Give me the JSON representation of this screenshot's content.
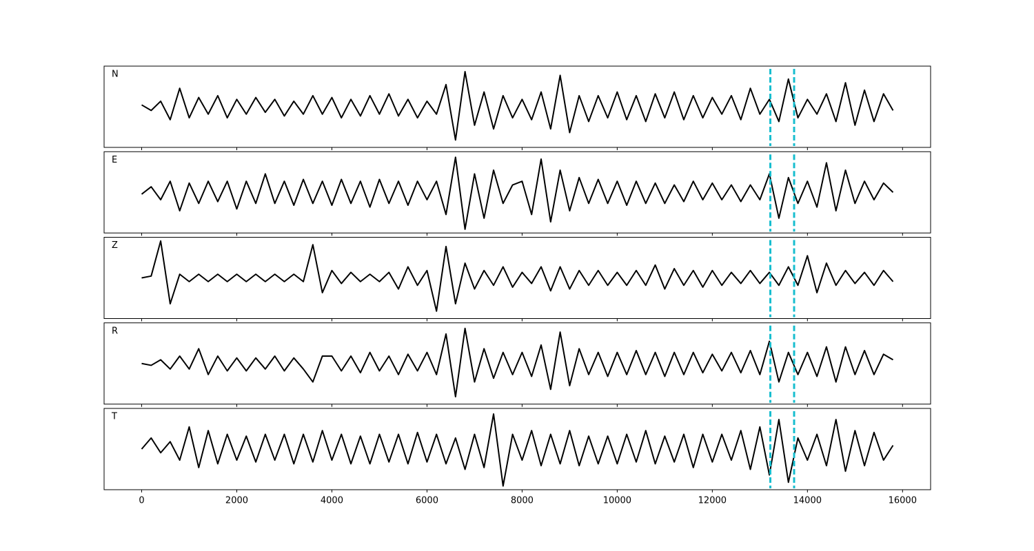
{
  "chart_data": {
    "type": "line",
    "x": [
      0,
      200,
      400,
      600,
      800,
      1000,
      1200,
      1400,
      1600,
      1800,
      2000,
      2200,
      2400,
      2600,
      2800,
      3000,
      3200,
      3400,
      3600,
      3800,
      4000,
      4200,
      4400,
      4600,
      4800,
      5000,
      5200,
      5400,
      5600,
      5800,
      6000,
      6200,
      6400,
      6600,
      6800,
      7000,
      7200,
      7400,
      7600,
      7800,
      8000,
      8200,
      8400,
      8600,
      8800,
      9000,
      9200,
      9400,
      9600,
      9800,
      10000,
      10200,
      10400,
      10600,
      10800,
      11000,
      11200,
      11400,
      11600,
      11800,
      12000,
      12200,
      12400,
      12600,
      12800,
      13000,
      13200,
      13400,
      13600,
      13800,
      14000,
      14200,
      14400,
      14600,
      14800,
      15000,
      15200,
      15400,
      15600,
      15800
    ],
    "series": [
      {
        "name": "N",
        "color": "#000000",
        "values": [
          0.05,
          -0.1,
          0.15,
          -0.35,
          0.5,
          -0.3,
          0.25,
          -0.2,
          0.3,
          -0.3,
          0.2,
          -0.2,
          0.25,
          -0.15,
          0.2,
          -0.25,
          0.15,
          -0.2,
          0.3,
          -0.2,
          0.25,
          -0.3,
          0.2,
          -0.25,
          0.3,
          -0.2,
          0.35,
          -0.25,
          0.2,
          -0.3,
          0.15,
          -0.2,
          0.6,
          -0.9,
          0.95,
          -0.5,
          0.4,
          -0.6,
          0.3,
          -0.3,
          0.2,
          -0.35,
          0.4,
          -0.6,
          0.85,
          -0.7,
          0.3,
          -0.4,
          0.3,
          -0.3,
          0.4,
          -0.35,
          0.3,
          -0.4,
          0.35,
          -0.3,
          0.4,
          -0.35,
          0.3,
          -0.3,
          0.25,
          -0.2,
          0.3,
          -0.35,
          0.5,
          -0.2,
          0.2,
          -0.4,
          0.75,
          -0.3,
          0.2,
          -0.2,
          0.35,
          -0.4,
          0.65,
          -0.5,
          0.45,
          -0.4,
          0.35,
          -0.1
        ]
      },
      {
        "name": "E",
        "color": "#000000",
        "values": [
          -0.05,
          0.15,
          -0.2,
          0.3,
          -0.5,
          0.25,
          -0.3,
          0.3,
          -0.25,
          0.3,
          -0.45,
          0.3,
          -0.3,
          0.5,
          -0.3,
          0.3,
          -0.35,
          0.35,
          -0.3,
          0.3,
          -0.35,
          0.35,
          -0.3,
          0.3,
          -0.4,
          0.35,
          -0.3,
          0.3,
          -0.35,
          0.3,
          -0.2,
          0.3,
          -0.6,
          0.95,
          -1.0,
          0.5,
          -0.7,
          0.6,
          -0.3,
          0.2,
          0.3,
          -0.6,
          0.9,
          -0.8,
          0.6,
          -0.5,
          0.4,
          -0.3,
          0.35,
          -0.3,
          0.3,
          -0.35,
          0.3,
          -0.3,
          0.25,
          -0.3,
          0.2,
          -0.25,
          0.3,
          -0.2,
          0.25,
          -0.2,
          0.2,
          -0.25,
          0.2,
          -0.2,
          0.5,
          -0.7,
          0.4,
          -0.3,
          0.3,
          -0.4,
          0.8,
          -0.5,
          0.6,
          -0.3,
          0.3,
          -0.2,
          0.25,
          0.0
        ]
      },
      {
        "name": "Z",
        "color": "#000000",
        "values": [
          0.0,
          0.05,
          1.0,
          -0.7,
          0.1,
          -0.1,
          0.1,
          -0.1,
          0.1,
          -0.1,
          0.1,
          -0.1,
          0.1,
          -0.1,
          0.1,
          -0.1,
          0.1,
          -0.1,
          0.9,
          -0.4,
          0.2,
          -0.15,
          0.15,
          -0.1,
          0.1,
          -0.1,
          0.15,
          -0.3,
          0.3,
          -0.2,
          0.2,
          -0.9,
          0.85,
          -0.7,
          0.4,
          -0.3,
          0.2,
          -0.2,
          0.3,
          -0.25,
          0.15,
          -0.15,
          0.3,
          -0.35,
          0.3,
          -0.3,
          0.2,
          -0.2,
          0.2,
          -0.2,
          0.15,
          -0.2,
          0.2,
          -0.2,
          0.35,
          -0.3,
          0.25,
          -0.2,
          0.2,
          -0.25,
          0.2,
          -0.2,
          0.15,
          -0.15,
          0.2,
          -0.15,
          0.15,
          -0.2,
          0.3,
          -0.2,
          0.6,
          -0.4,
          0.4,
          -0.2,
          0.2,
          -0.15,
          0.15,
          -0.2,
          0.2,
          -0.1
        ]
      },
      {
        "name": "R",
        "color": "#000000",
        "values": [
          0.0,
          -0.05,
          0.1,
          -0.15,
          0.2,
          -0.15,
          0.4,
          -0.3,
          0.2,
          -0.2,
          0.15,
          -0.2,
          0.15,
          -0.15,
          0.2,
          -0.2,
          0.15,
          -0.15,
          -0.5,
          0.2,
          0.2,
          -0.2,
          0.2,
          -0.25,
          0.3,
          -0.2,
          0.2,
          -0.3,
          0.25,
          -0.2,
          0.3,
          -0.3,
          0.8,
          -0.9,
          0.95,
          -0.5,
          0.4,
          -0.4,
          0.3,
          -0.3,
          0.3,
          -0.35,
          0.5,
          -0.7,
          0.85,
          -0.6,
          0.4,
          -0.3,
          0.3,
          -0.35,
          0.3,
          -0.3,
          0.35,
          -0.3,
          0.3,
          -0.35,
          0.3,
          -0.3,
          0.3,
          -0.25,
          0.25,
          -0.2,
          0.3,
          -0.25,
          0.35,
          -0.3,
          0.6,
          -0.5,
          0.3,
          -0.3,
          0.3,
          -0.35,
          0.45,
          -0.5,
          0.45,
          -0.3,
          0.35,
          -0.3,
          0.25,
          0.1
        ]
      },
      {
        "name": "T",
        "color": "#000000",
        "values": [
          0.0,
          0.3,
          -0.1,
          0.2,
          -0.3,
          0.6,
          -0.5,
          0.5,
          -0.4,
          0.4,
          -0.3,
          0.35,
          -0.35,
          0.4,
          -0.3,
          0.4,
          -0.4,
          0.4,
          -0.35,
          0.5,
          -0.3,
          0.4,
          -0.4,
          0.35,
          -0.4,
          0.4,
          -0.35,
          0.4,
          -0.4,
          0.45,
          -0.35,
          0.4,
          -0.4,
          0.3,
          -0.55,
          0.4,
          -0.5,
          0.95,
          -1.0,
          0.4,
          -0.3,
          0.5,
          -0.45,
          0.4,
          -0.4,
          0.5,
          -0.45,
          0.35,
          -0.4,
          0.35,
          -0.4,
          0.4,
          -0.35,
          0.5,
          -0.4,
          0.35,
          -0.35,
          0.4,
          -0.5,
          0.4,
          -0.35,
          0.4,
          -0.3,
          0.5,
          -0.55,
          0.6,
          -0.7,
          0.8,
          -0.9,
          0.3,
          -0.3,
          0.4,
          -0.45,
          0.8,
          -0.6,
          0.5,
          -0.45,
          0.45,
          -0.3,
          0.1
        ]
      }
    ],
    "xlim": [
      -790,
      16590
    ],
    "ylim": [
      -1.1,
      1.1
    ],
    "xticks": [
      0,
      2000,
      4000,
      6000,
      8000,
      10000,
      12000,
      14000,
      16000
    ],
    "vlines": {
      "values": [
        13220,
        13720
      ],
      "color": "#17becf"
    }
  }
}
